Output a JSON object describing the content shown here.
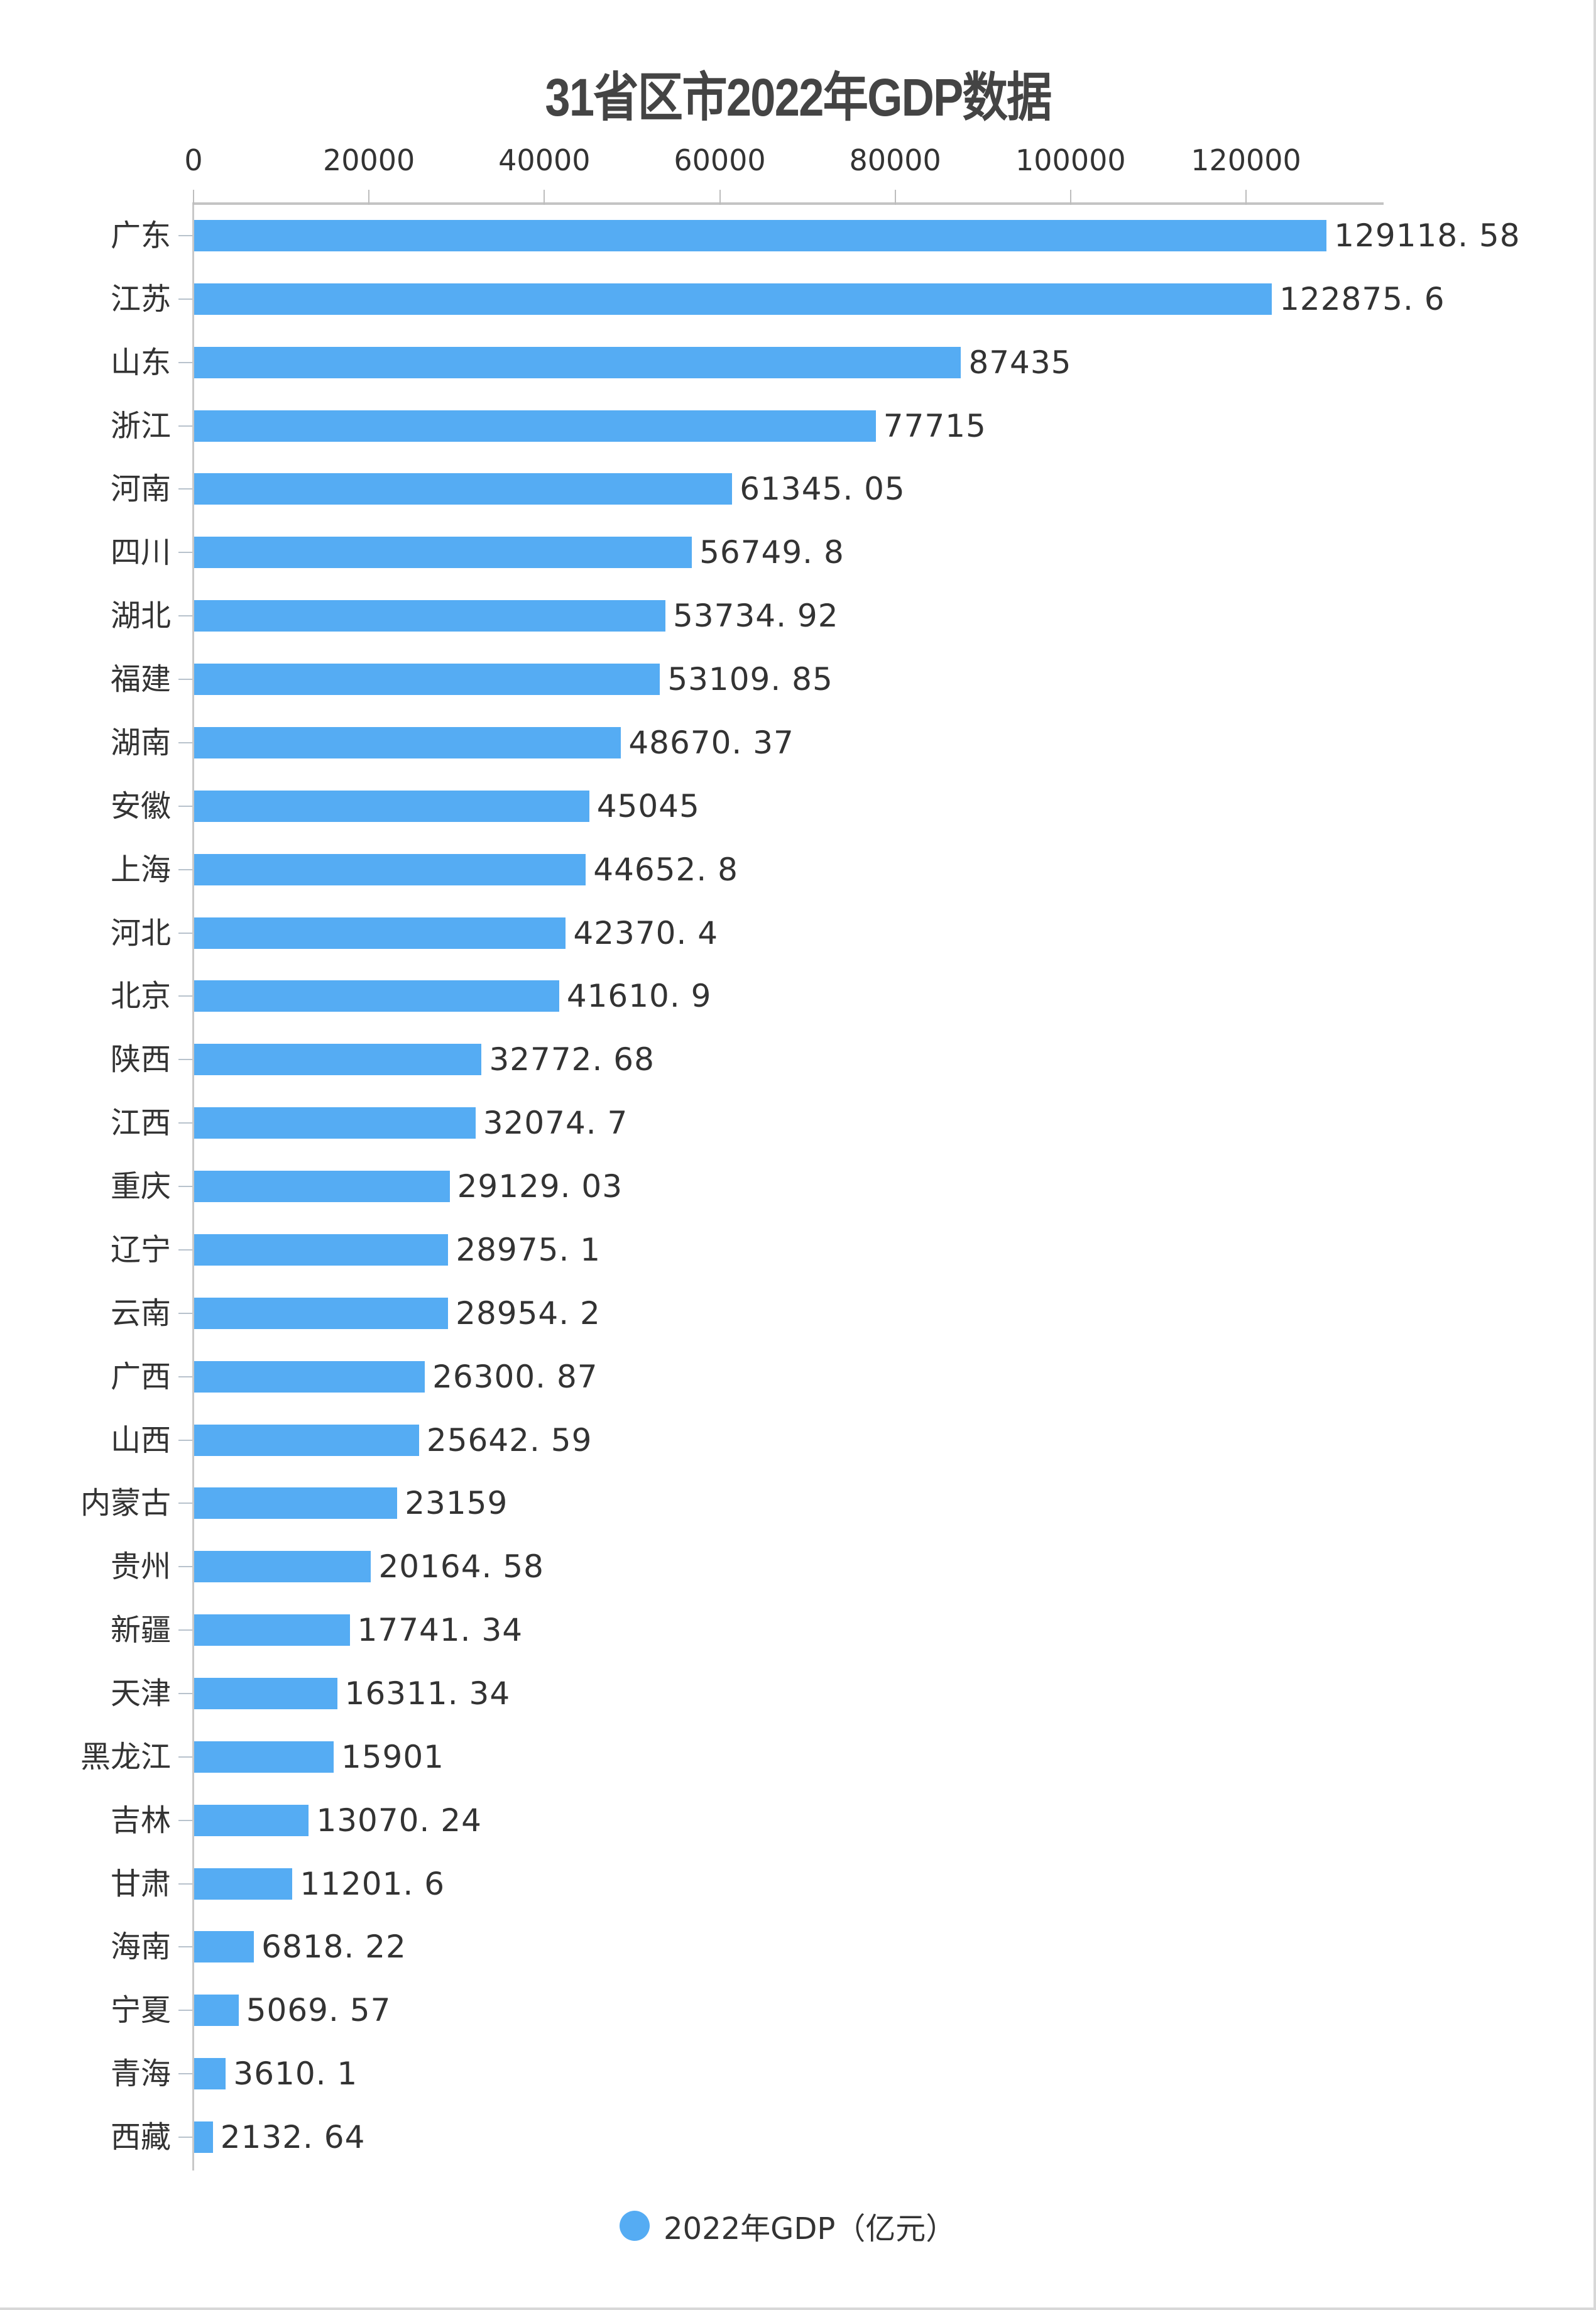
{
  "title": "31省区市2022年GDP数据",
  "legend": {
    "label": "2022年GDP（亿元）",
    "color": "#55acf3"
  },
  "axis": {
    "ticks": [
      "0",
      "20000",
      "40000",
      "60000",
      "80000",
      "100000",
      "120000"
    ]
  },
  "chart_data": {
    "type": "bar",
    "orientation": "horizontal",
    "title": "31省区市2022年GDP数据",
    "xlabel": "",
    "ylabel": "",
    "xlim": [
      0,
      135000
    ],
    "x_ticks": [
      0,
      20000,
      40000,
      60000,
      80000,
      100000,
      120000
    ],
    "x_axis_position": "top",
    "grid": false,
    "legend_position": "bottom",
    "categories": [
      "广东",
      "江苏",
      "山东",
      "浙江",
      "河南",
      "四川",
      "湖北",
      "福建",
      "湖南",
      "安徽",
      "上海",
      "河北",
      "北京",
      "陕西",
      "江西",
      "重庆",
      "辽宁",
      "云南",
      "广西",
      "山西",
      "内蒙古",
      "贵州",
      "新疆",
      "天津",
      "黑龙江",
      "吉林",
      "甘肃",
      "海南",
      "宁夏",
      "青海",
      "西藏"
    ],
    "series": [
      {
        "name": "2022年GDP（亿元）",
        "color": "#55acf3",
        "values": [
          129118.58,
          122875.6,
          87435,
          77715,
          61345.05,
          56749.8,
          53734.92,
          53109.85,
          48670.37,
          45045,
          44652.8,
          42370.4,
          41610.9,
          32772.68,
          32074.7,
          29129.03,
          28975.1,
          28954.2,
          26300.87,
          25642.59,
          23159,
          20164.58,
          17741.34,
          16311.34,
          15901,
          13070.24,
          11201.6,
          6818.22,
          5069.57,
          3610.1,
          2132.64
        ]
      }
    ]
  },
  "rows": [
    {
      "name": "广东",
      "value": 129118.58,
      "label": "129118. 58"
    },
    {
      "name": "江苏",
      "value": 122875.6,
      "label": "122875. 6"
    },
    {
      "name": "山东",
      "value": 87435,
      "label": "87435"
    },
    {
      "name": "浙江",
      "value": 77715,
      "label": "77715"
    },
    {
      "name": "河南",
      "value": 61345.05,
      "label": "61345. 05"
    },
    {
      "name": "四川",
      "value": 56749.8,
      "label": "56749. 8"
    },
    {
      "name": "湖北",
      "value": 53734.92,
      "label": "53734. 92"
    },
    {
      "name": "福建",
      "value": 53109.85,
      "label": "53109. 85"
    },
    {
      "name": "湖南",
      "value": 48670.37,
      "label": "48670. 37"
    },
    {
      "name": "安徽",
      "value": 45045,
      "label": "45045"
    },
    {
      "name": "上海",
      "value": 44652.8,
      "label": "44652. 8"
    },
    {
      "name": "河北",
      "value": 42370.4,
      "label": "42370. 4"
    },
    {
      "name": "北京",
      "value": 41610.9,
      "label": "41610. 9"
    },
    {
      "name": "陕西",
      "value": 32772.68,
      "label": "32772. 68"
    },
    {
      "name": "江西",
      "value": 32074.7,
      "label": "32074. 7"
    },
    {
      "name": "重庆",
      "value": 29129.03,
      "label": "29129. 03"
    },
    {
      "name": "辽宁",
      "value": 28975.1,
      "label": "28975. 1"
    },
    {
      "name": "云南",
      "value": 28954.2,
      "label": "28954. 2"
    },
    {
      "name": "广西",
      "value": 26300.87,
      "label": "26300. 87"
    },
    {
      "name": "山西",
      "value": 25642.59,
      "label": "25642. 59"
    },
    {
      "name": "内蒙古",
      "value": 23159,
      "label": "23159"
    },
    {
      "name": "贵州",
      "value": 20164.58,
      "label": "20164. 58"
    },
    {
      "name": "新疆",
      "value": 17741.34,
      "label": "17741. 34"
    },
    {
      "name": "天津",
      "value": 16311.34,
      "label": "16311. 34"
    },
    {
      "name": "黑龙江",
      "value": 15901,
      "label": "15901"
    },
    {
      "name": "吉林",
      "value": 13070.24,
      "label": "13070. 24"
    },
    {
      "name": "甘肃",
      "value": 11201.6,
      "label": "11201. 6"
    },
    {
      "name": "海南",
      "value": 6818.22,
      "label": "6818. 22"
    },
    {
      "name": "宁夏",
      "value": 5069.57,
      "label": "5069. 57"
    },
    {
      "name": "青海",
      "value": 3610.1,
      "label": "3610. 1"
    },
    {
      "name": "西藏",
      "value": 2132.64,
      "label": "2132. 64"
    }
  ]
}
